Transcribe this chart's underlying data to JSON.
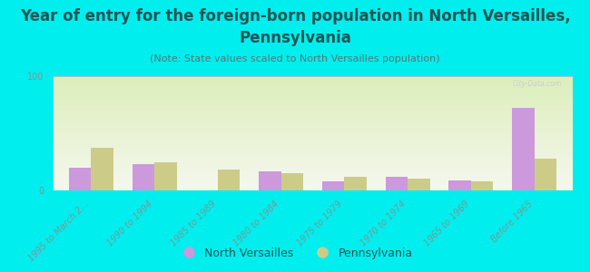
{
  "title_line1": "Year of entry for the foreign-born population in North Versailles,",
  "title_line2": "Pennsylvania",
  "subtitle": "(Note: State values scaled to North Versailles population)",
  "categories": [
    "1995 to March 2...",
    "1990 to 1994",
    "1985 to 1989",
    "1980 to 1984",
    "1975 to 1979",
    "1970 to 1974",
    "1965 to 1969",
    "Before 1965"
  ],
  "north_versailles": [
    20,
    23,
    0,
    17,
    8,
    12,
    9,
    72
  ],
  "pennsylvania": [
    37,
    25,
    18,
    15,
    12,
    10,
    8,
    28
  ],
  "nv_color": "#cc99dd",
  "pa_color": "#cccc88",
  "bg_color": "#00eeee",
  "ylim": [
    0,
    100
  ],
  "yticks": [
    0,
    100
  ],
  "bar_width": 0.35,
  "title_fontsize": 12,
  "subtitle_fontsize": 8,
  "tick_fontsize": 7,
  "legend_fontsize": 9,
  "title_color": "#225555",
  "subtitle_color": "#557777",
  "tick_color": "#779999",
  "watermark": "City-Data.com"
}
